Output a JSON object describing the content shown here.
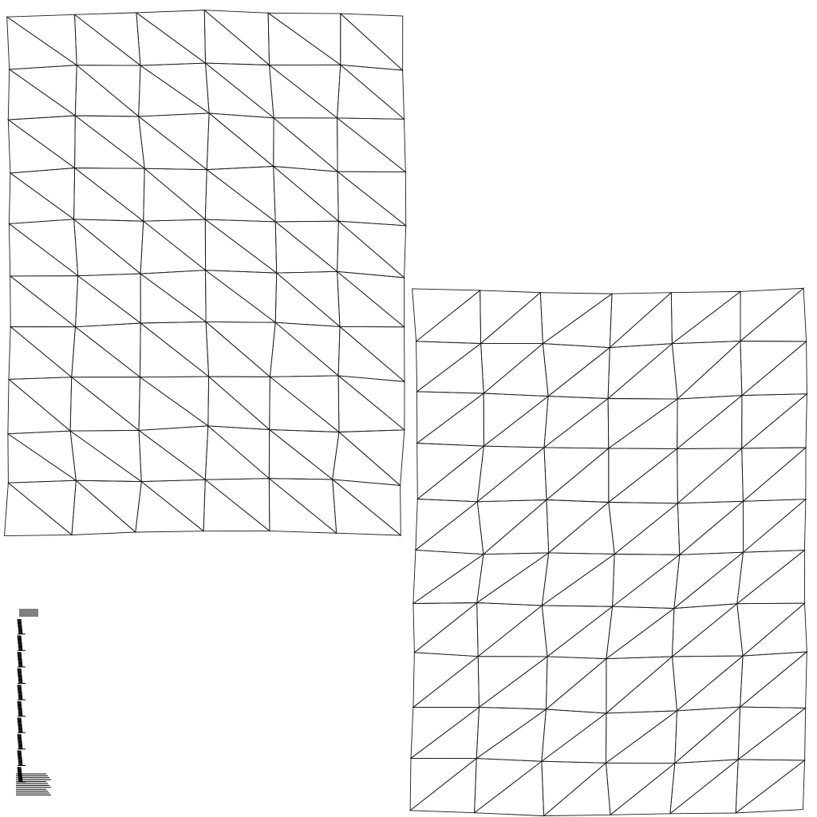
{
  "figure": {
    "description_kind": "uv-layout",
    "background_color": "#ffffff",
    "fill_color": "#f7f7f7",
    "line_color": "#1a1a1a"
  },
  "islands": [
    {
      "name": "mesh-island-left",
      "rows": 10,
      "cols": 6,
      "diagonal": "down-right",
      "jitter_seed": 7
    },
    {
      "name": "mesh-island-right",
      "rows": 10,
      "cols": 6,
      "diagonal": "up-right",
      "jitter_seed": 13
    }
  ],
  "strip_island": {
    "name": "mesh-island-strip",
    "segments": 10
  }
}
